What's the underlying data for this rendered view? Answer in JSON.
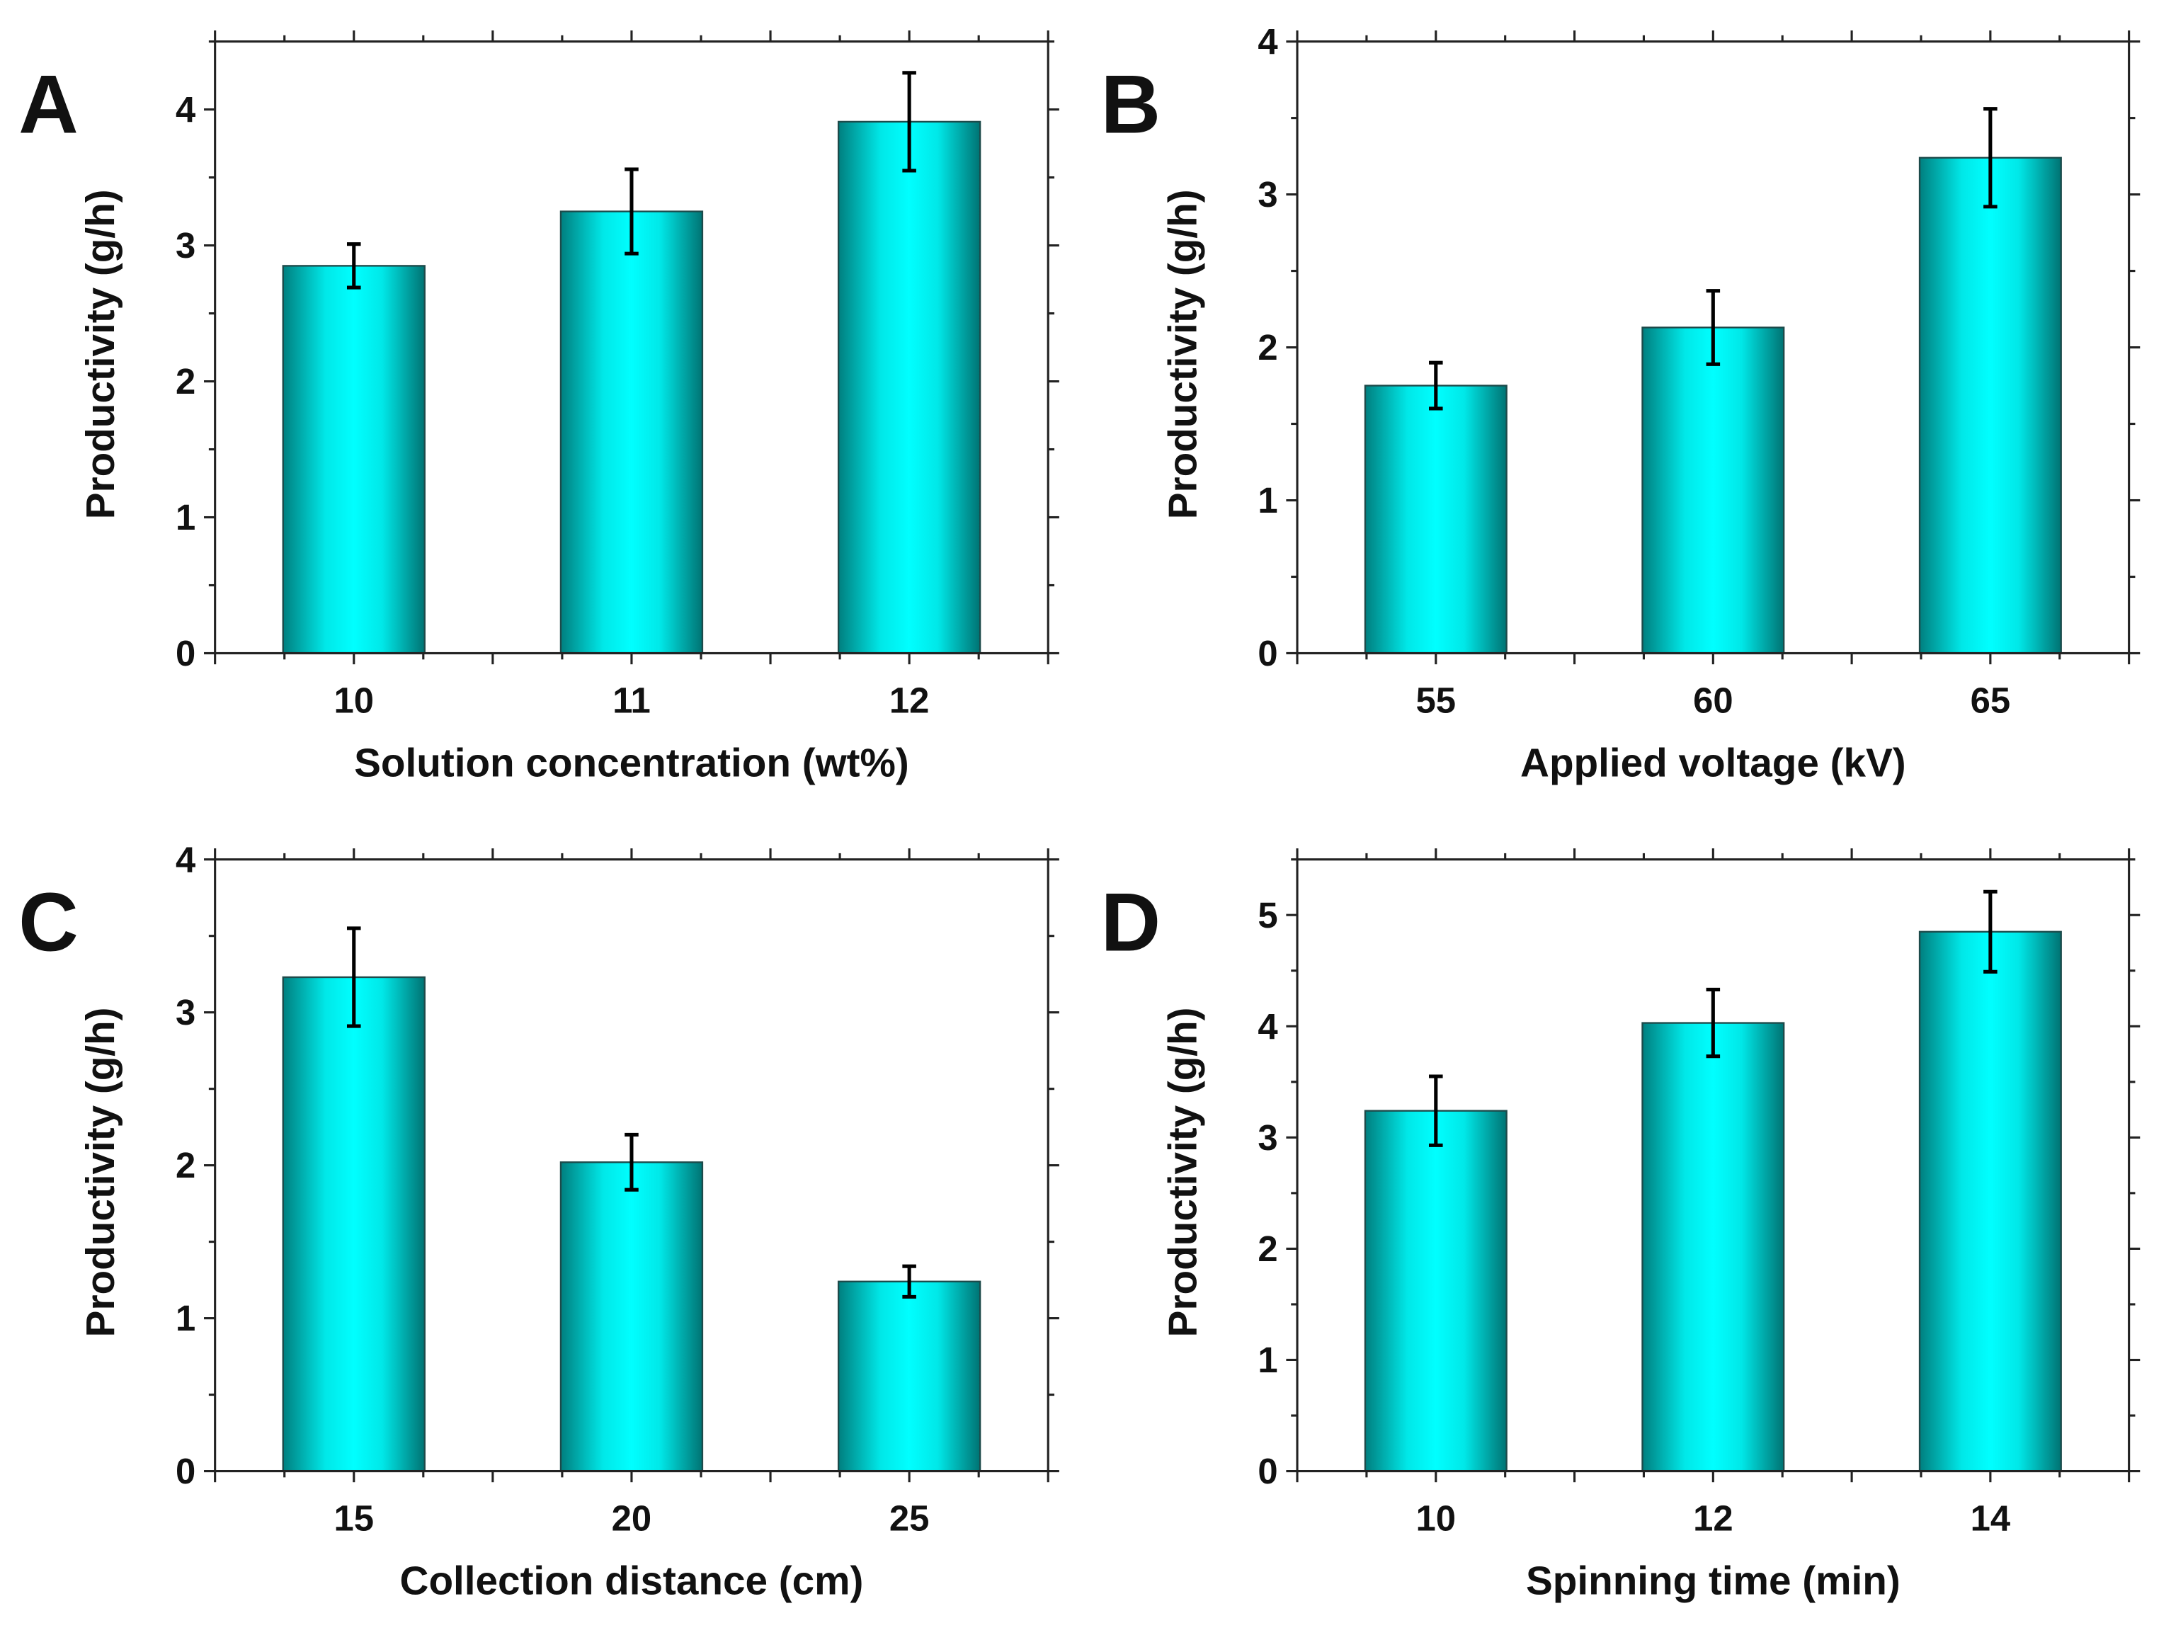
{
  "chart_data": [
    {
      "type": "bar",
      "panel_label": "A",
      "title": "",
      "xlabel": "Solution concentration (wt%)",
      "ylabel": "Productivity (g/h)",
      "categories": [
        "10",
        "11",
        "12"
      ],
      "values": [
        2.85,
        3.25,
        3.91
      ],
      "errors": [
        0.16,
        0.31,
        0.36
      ],
      "ylim": [
        0,
        4.5
      ],
      "yticks": [
        "0",
        "1",
        "2",
        "3",
        "4"
      ],
      "grid": false,
      "bar_color": "#00ffff",
      "bar_edge_color": "#008080"
    },
    {
      "type": "bar",
      "panel_label": "B",
      "title": "",
      "xlabel": "Applied voltage (kV)",
      "ylabel": "Productivity (g/h)",
      "categories": [
        "55",
        "60",
        "65"
      ],
      "values": [
        1.75,
        2.13,
        3.24
      ],
      "errors": [
        0.15,
        0.24,
        0.32
      ],
      "ylim": [
        0,
        4
      ],
      "yticks": [
        "0",
        "1",
        "2",
        "3",
        "4"
      ],
      "grid": false,
      "bar_color": "#00ffff",
      "bar_edge_color": "#008080"
    },
    {
      "type": "bar",
      "panel_label": "C",
      "title": "",
      "xlabel": "Collection distance (cm)",
      "ylabel": "Productivity (g/h)",
      "categories": [
        "15",
        "20",
        "25"
      ],
      "values": [
        3.23,
        2.02,
        1.24
      ],
      "errors": [
        0.32,
        0.18,
        0.1
      ],
      "ylim": [
        0,
        4
      ],
      "yticks": [
        "0",
        "1",
        "2",
        "3",
        "4"
      ],
      "grid": false,
      "bar_color": "#00ffff",
      "bar_edge_color": "#008080"
    },
    {
      "type": "bar",
      "panel_label": "D",
      "title": "",
      "xlabel": "Spinning time (min)",
      "ylabel": "Productivity (g/h)",
      "categories": [
        "10",
        "12",
        "14"
      ],
      "values": [
        3.24,
        4.03,
        4.85
      ],
      "errors": [
        0.31,
        0.3,
        0.36
      ],
      "ylim": [
        0,
        5.5
      ],
      "yticks": [
        "0",
        "1",
        "2",
        "3",
        "4",
        "5"
      ],
      "grid": false,
      "bar_color": "#00ffff",
      "bar_edge_color": "#008080"
    }
  ]
}
